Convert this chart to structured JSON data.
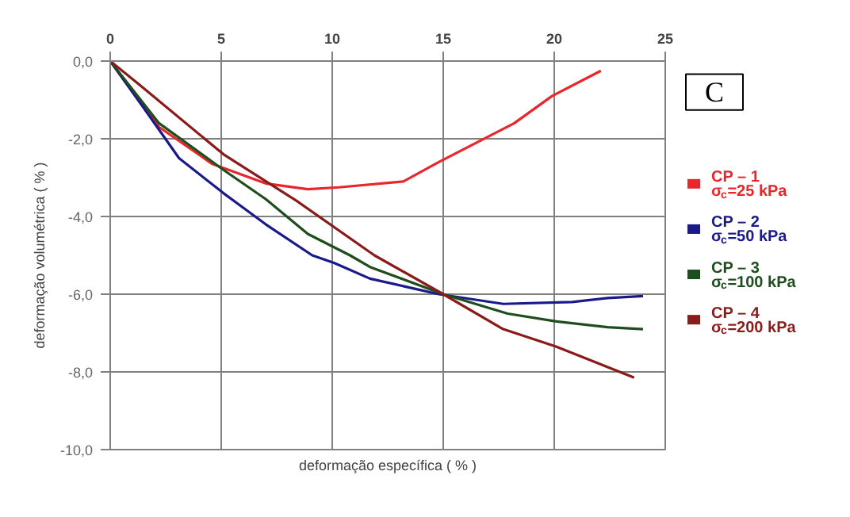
{
  "chart_data": {
    "type": "line",
    "xlabel": "deformação específica ( % )",
    "ylabel": "deformação volumétrica ( % )",
    "annotations": [
      "C"
    ],
    "xlim": [
      0,
      25
    ],
    "xticks": [
      0,
      5,
      10,
      15,
      20,
      25
    ],
    "ylim": [
      -10,
      0
    ],
    "yticks": [
      {
        "value": 0,
        "label": "0,0"
      },
      {
        "value": -2,
        "label": "-2,0"
      },
      {
        "value": -4,
        "label": "-4,0"
      },
      {
        "value": -6,
        "label": "-6,0"
      },
      {
        "value": -8,
        "label": "-8,0"
      },
      {
        "value": -10,
        "label": "-10,0"
      }
    ],
    "grid": true,
    "legend": "right",
    "marker": "none",
    "line_style": "solid",
    "series": [
      {
        "name": "CP – 1\nσ$_{c}$=25 kPa",
        "color": "#e8262b",
        "x": [
          0,
          2.2,
          4.6,
          7,
          8.9,
          10.3,
          13.2,
          14.8,
          16.5,
          18.2,
          19.9,
          22.1
        ],
        "values": [
          0,
          -1.7,
          -2.65,
          -3.15,
          -3.3,
          -3.25,
          -3.1,
          -2.6,
          -2.1,
          -1.6,
          -0.9,
          -0.25
        ]
      },
      {
        "name": "CP – 2\nσ$_{c}$=50 kPa",
        "color": "#1a1a8c",
        "x": [
          0,
          1.5,
          3.1,
          5.1,
          7,
          9.1,
          10.1,
          11.7,
          14.8,
          17.7,
          20.8,
          22.4,
          24.0
        ],
        "values": [
          0,
          -1.2,
          -2.5,
          -3.4,
          -4.2,
          -5.0,
          -5.2,
          -5.6,
          -6.0,
          -6.25,
          -6.2,
          -6.1,
          -6.05
        ]
      },
      {
        "name": "CP – 3\nσ$_{c}$=100 kPa",
        "color": "#1e4d1e",
        "x": [
          0,
          2.2,
          5.1,
          7,
          8.9,
          10.8,
          11.7,
          15,
          17.9,
          20.1,
          22.4,
          24.0
        ],
        "values": [
          0,
          -1.6,
          -2.8,
          -3.55,
          -4.45,
          -5.0,
          -5.3,
          -6.0,
          -6.5,
          -6.7,
          -6.85,
          -6.9
        ]
      },
      {
        "name": "CP – 4\nσ$_{c}$=200 kPa",
        "color": "#8b1a1a",
        "x": [
          0,
          1.3,
          5.1,
          8.4,
          11.9,
          15,
          17.7,
          20.1,
          23.6
        ],
        "values": [
          0,
          -0.6,
          -2.4,
          -3.6,
          -5.0,
          -6.0,
          -6.9,
          -7.35,
          -8.15
        ]
      }
    ]
  }
}
